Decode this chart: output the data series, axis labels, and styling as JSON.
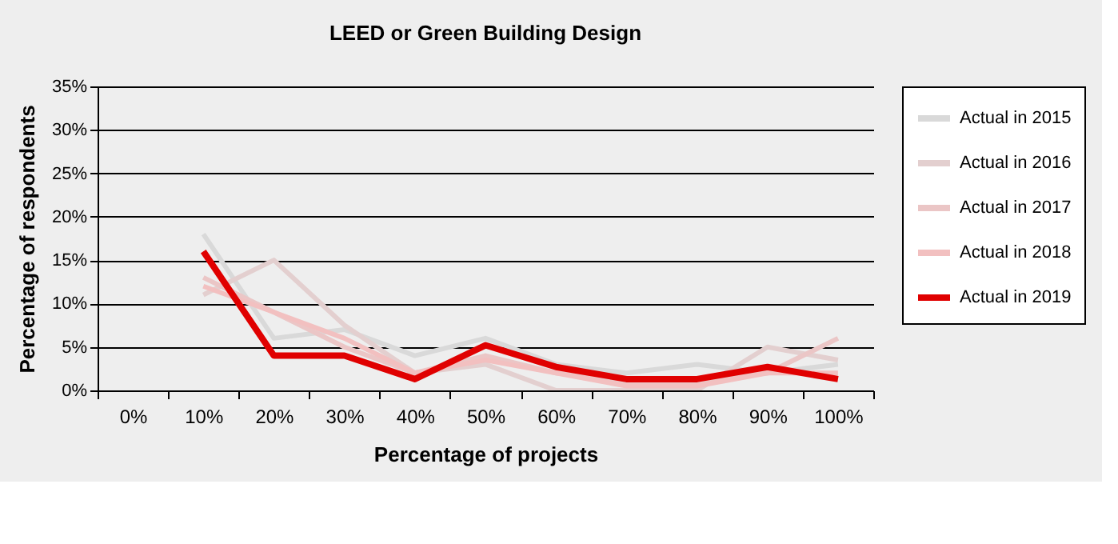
{
  "chart_data": {
    "type": "line",
    "title": "LEED or Green Building Design",
    "xlabel": "Percentage of projects",
    "ylabel": "Percentage of respondents",
    "categories": [
      "0%",
      "10%",
      "20%",
      "30%",
      "40%",
      "50%",
      "60%",
      "70%",
      "80%",
      "90%",
      "100%"
    ],
    "series": [
      {
        "name": "Actual in 2015",
        "color": "#d9d9d9",
        "values": [
          null,
          18,
          6,
          7,
          4,
          6,
          3,
          2,
          3,
          2,
          3
        ]
      },
      {
        "name": "Actual in 2016",
        "color": "#e3cfcf",
        "values": [
          null,
          11,
          15,
          7.5,
          2,
          3,
          0,
          0,
          0,
          5,
          3.5
        ]
      },
      {
        "name": "Actual in 2017",
        "color": "#ebc6c6",
        "values": [
          null,
          13,
          9,
          5,
          2,
          4,
          2,
          1,
          1,
          2,
          6
        ]
      },
      {
        "name": "Actual in 2018",
        "color": "#f2c0c0",
        "values": [
          null,
          12,
          9,
          6,
          2,
          3.5,
          2,
          0.5,
          0.5,
          2,
          2
        ]
      },
      {
        "name": "Actual in 2019",
        "color": "#e00000",
        "values": [
          null,
          16,
          4,
          4,
          1.3,
          5.2,
          2.7,
          1.3,
          1.3,
          2.7,
          1.3
        ]
      }
    ],
    "ylim": [
      0,
      35
    ],
    "yticks": [
      {
        "value": 0,
        "label": "0%"
      },
      {
        "value": 5,
        "label": "5%"
      },
      {
        "value": 10,
        "label": "10%"
      },
      {
        "value": 15,
        "label": "15%"
      },
      {
        "value": 20,
        "label": "20%"
      },
      {
        "value": 25,
        "label": "25%"
      },
      {
        "value": 30,
        "label": "30%"
      },
      {
        "value": 35,
        "label": "35%"
      }
    ],
    "grid": "y",
    "legend": "right",
    "marker": "none",
    "line_style": "solid"
  }
}
